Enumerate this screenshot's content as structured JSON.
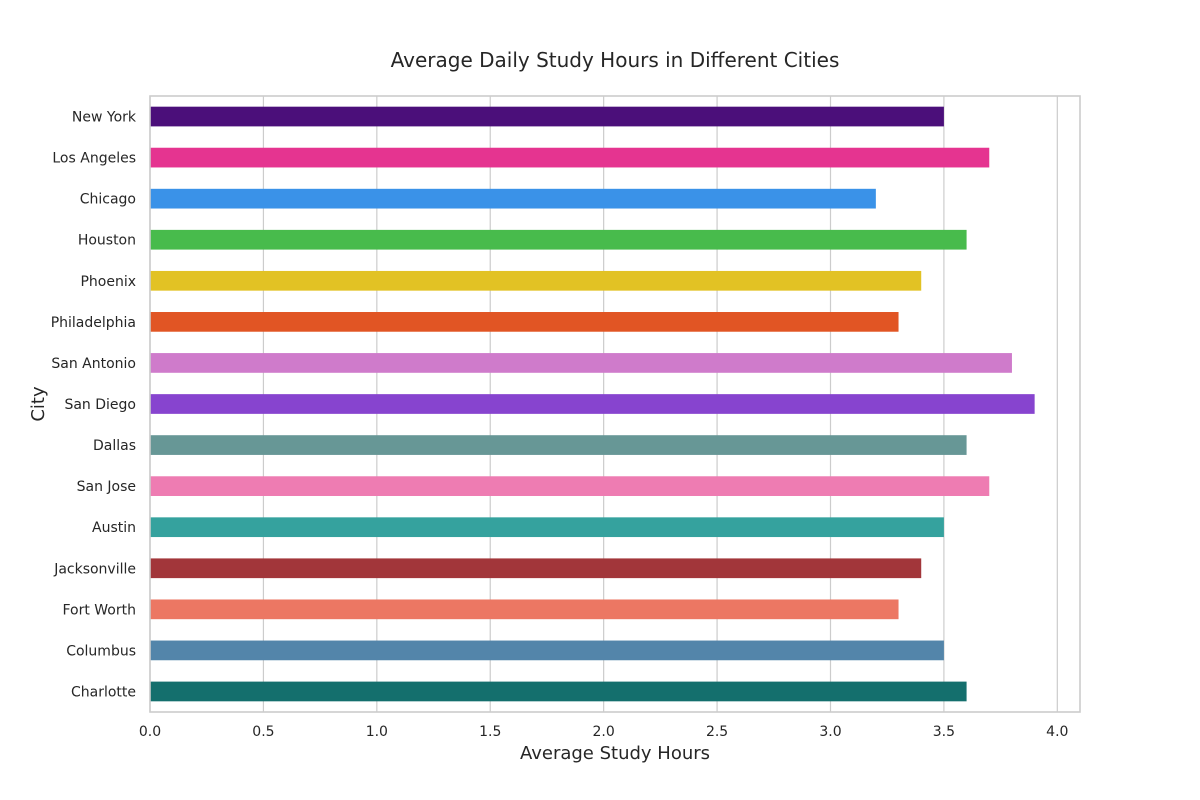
{
  "chart_data": {
    "type": "bar",
    "orientation": "horizontal",
    "title": "Average Daily Study Hours in Different Cities",
    "xlabel": "Average Study Hours",
    "ylabel": "City",
    "xlim": [
      0,
      4.1
    ],
    "xticks": [
      0.0,
      0.5,
      1.0,
      1.5,
      2.0,
      2.5,
      3.0,
      3.5,
      4.0
    ],
    "xtick_labels": [
      "0.0",
      "0.5",
      "1.0",
      "1.5",
      "2.0",
      "2.5",
      "3.0",
      "3.5",
      "4.0"
    ],
    "grid": "vertical",
    "categories": [
      "New York",
      "Los Angeles",
      "Chicago",
      "Houston",
      "Phoenix",
      "Philadelphia",
      "San Antonio",
      "San Diego",
      "Dallas",
      "San Jose",
      "Austin",
      "Jacksonville",
      "Fort Worth",
      "Columbus",
      "Charlotte"
    ],
    "values": [
      3.5,
      3.7,
      3.2,
      3.6,
      3.4,
      3.3,
      3.8,
      3.9,
      3.6,
      3.7,
      3.5,
      3.4,
      3.3,
      3.5,
      3.6
    ],
    "colors": [
      "#4b0f7a",
      "#e53490",
      "#3a92e8",
      "#48bb4c",
      "#e2c224",
      "#e15524",
      "#cf7bcb",
      "#8744cf",
      "#679796",
      "#ee7cb2",
      "#35a29e",
      "#a2363a",
      "#ec7763",
      "#5385aa",
      "#146f6d"
    ]
  }
}
